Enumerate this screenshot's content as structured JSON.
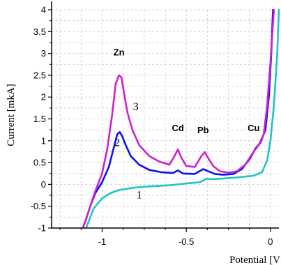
{
  "chart_data": {
    "type": "line",
    "xlabel": "Potential [V",
    "ylabel": "Current [mkA]",
    "xlim": [
      -1.3,
      0.05
    ],
    "ylim": [
      -1.0,
      4.0
    ],
    "xticks": [
      "-1",
      "-0.5",
      "0"
    ],
    "xtick_values": [
      -1,
      -0.5,
      0
    ],
    "yticks": [
      "4",
      "3.5",
      "3",
      "2.5",
      "2",
      "1.5",
      "1",
      "0.5",
      "0",
      "-0.5",
      "-1"
    ],
    "ytick_values": [
      4,
      3.5,
      3,
      2.5,
      2,
      1.5,
      1,
      0.5,
      0,
      -0.5,
      -1
    ],
    "grid": true,
    "annotations": [
      {
        "text": "Zn",
        "x": -0.9,
        "y": 2.95
      },
      {
        "text": "Cd",
        "x": -0.55,
        "y": 1.22
      },
      {
        "text": "Pb",
        "x": -0.4,
        "y": 1.17
      },
      {
        "text": "Cu",
        "x": -0.1,
        "y": 1.22
      }
    ],
    "series": [
      {
        "label": "1",
        "color": "#20c4c4",
        "label_pos": [
          -0.78,
          -0.32
        ],
        "points": [
          [
            -1.1,
            -1.05
          ],
          [
            -1.08,
            -0.85
          ],
          [
            -1.05,
            -0.55
          ],
          [
            -1.0,
            -0.32
          ],
          [
            -0.95,
            -0.2
          ],
          [
            -0.9,
            -0.13
          ],
          [
            -0.8,
            -0.07
          ],
          [
            -0.7,
            -0.04
          ],
          [
            -0.6,
            -0.02
          ],
          [
            -0.5,
            0.02
          ],
          [
            -0.42,
            0.05
          ],
          [
            -0.38,
            0.13
          ],
          [
            -0.34,
            0.12
          ],
          [
            -0.3,
            0.13
          ],
          [
            -0.2,
            0.16
          ],
          [
            -0.1,
            0.2
          ],
          [
            -0.05,
            0.28
          ],
          [
            -0.02,
            0.55
          ],
          [
            0.0,
            1.0
          ],
          [
            0.02,
            1.8
          ],
          [
            0.04,
            3.0
          ],
          [
            0.05,
            4.0
          ]
        ]
      },
      {
        "label": "2",
        "color": "#1010ee",
        "label_pos": [
          -0.91,
          0.88
        ],
        "points": [
          [
            -1.12,
            -1.05
          ],
          [
            -1.1,
            -0.85
          ],
          [
            -1.07,
            -0.5
          ],
          [
            -1.04,
            -0.2
          ],
          [
            -1.0,
            0.05
          ],
          [
            -0.96,
            0.4
          ],
          [
            -0.93,
            0.85
          ],
          [
            -0.91,
            1.15
          ],
          [
            -0.895,
            1.2
          ],
          [
            -0.88,
            1.1
          ],
          [
            -0.86,
            0.9
          ],
          [
            -0.83,
            0.65
          ],
          [
            -0.78,
            0.45
          ],
          [
            -0.72,
            0.33
          ],
          [
            -0.65,
            0.28
          ],
          [
            -0.58,
            0.26
          ],
          [
            -0.55,
            0.32
          ],
          [
            -0.52,
            0.25
          ],
          [
            -0.45,
            0.24
          ],
          [
            -0.4,
            0.35
          ],
          [
            -0.37,
            0.3
          ],
          [
            -0.33,
            0.24
          ],
          [
            -0.28,
            0.22
          ],
          [
            -0.22,
            0.24
          ],
          [
            -0.17,
            0.35
          ],
          [
            -0.12,
            0.6
          ],
          [
            -0.09,
            0.82
          ],
          [
            -0.06,
            0.95
          ],
          [
            -0.03,
            1.25
          ],
          [
            -0.01,
            2.0
          ],
          [
            0.005,
            3.0
          ],
          [
            0.015,
            4.0
          ]
        ]
      },
      {
        "label": "3",
        "color": "#cc22cc",
        "label_pos": [
          -0.8,
          1.7
        ],
        "points": [
          [
            -1.12,
            -1.05
          ],
          [
            -1.1,
            -0.85
          ],
          [
            -1.07,
            -0.5
          ],
          [
            -1.04,
            -0.15
          ],
          [
            -1.0,
            0.25
          ],
          [
            -0.97,
            0.8
          ],
          [
            -0.94,
            1.6
          ],
          [
            -0.92,
            2.3
          ],
          [
            -0.9,
            2.5
          ],
          [
            -0.885,
            2.45
          ],
          [
            -0.87,
            2.1
          ],
          [
            -0.85,
            1.65
          ],
          [
            -0.82,
            1.25
          ],
          [
            -0.78,
            0.9
          ],
          [
            -0.72,
            0.65
          ],
          [
            -0.66,
            0.52
          ],
          [
            -0.6,
            0.45
          ],
          [
            -0.57,
            0.65
          ],
          [
            -0.55,
            0.8
          ],
          [
            -0.53,
            0.62
          ],
          [
            -0.5,
            0.42
          ],
          [
            -0.45,
            0.4
          ],
          [
            -0.41,
            0.65
          ],
          [
            -0.39,
            0.74
          ],
          [
            -0.37,
            0.6
          ],
          [
            -0.34,
            0.42
          ],
          [
            -0.3,
            0.3
          ],
          [
            -0.25,
            0.27
          ],
          [
            -0.2,
            0.3
          ],
          [
            -0.15,
            0.45
          ],
          [
            -0.1,
            0.75
          ],
          [
            -0.07,
            0.9
          ],
          [
            -0.04,
            1.15
          ],
          [
            -0.02,
            1.8
          ],
          [
            0.0,
            2.8
          ],
          [
            0.02,
            4.0
          ]
        ]
      }
    ]
  }
}
